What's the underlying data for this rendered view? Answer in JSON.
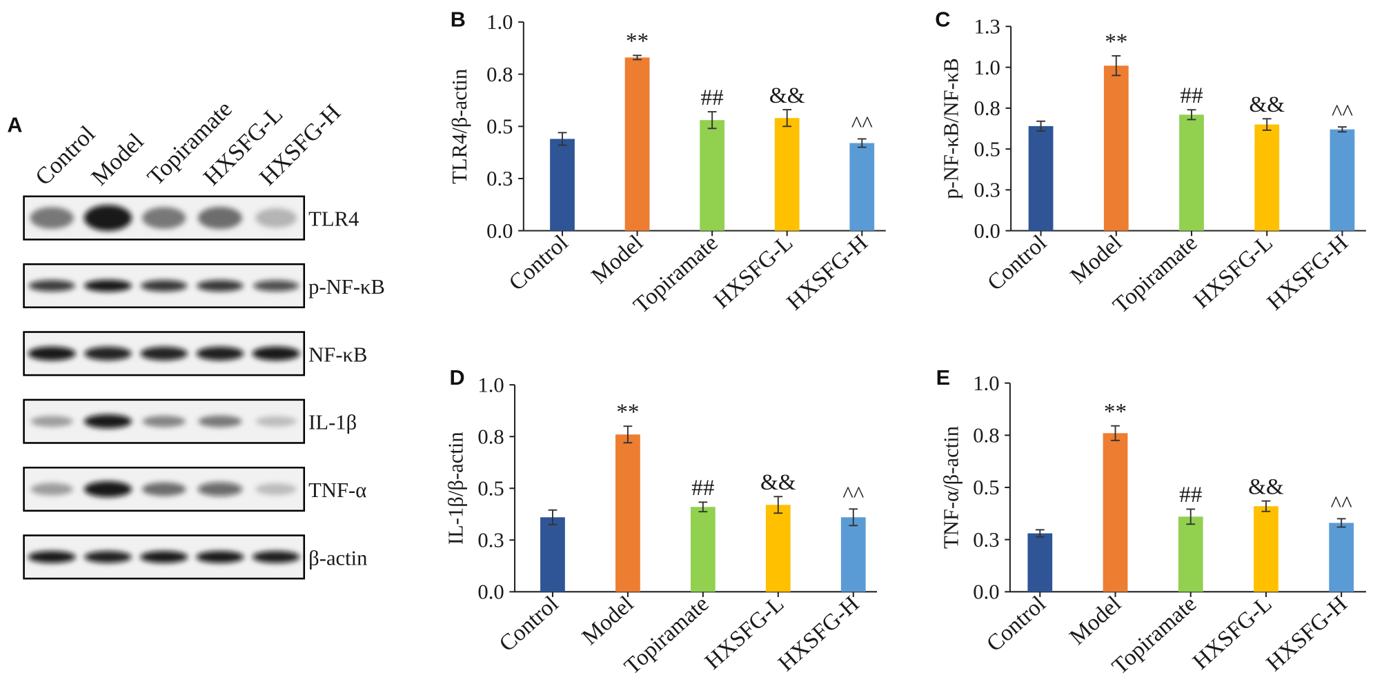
{
  "panel_a": {
    "label": "A",
    "lanes": [
      "Control",
      "Model",
      "Topiramate",
      "HXSFG-L",
      "HXSFG-H"
    ],
    "rows": [
      {
        "protein": "TLR4",
        "band_intensity": [
          0.5,
          0.95,
          0.5,
          0.55,
          0.25
        ]
      },
      {
        "protein": "p-NF-κB",
        "band_intensity": [
          0.8,
          0.95,
          0.82,
          0.82,
          0.72
        ]
      },
      {
        "protein": "NF-κB",
        "band_intensity": [
          0.95,
          0.9,
          0.9,
          0.92,
          0.95
        ]
      },
      {
        "protein": "IL-1β",
        "band_intensity": [
          0.35,
          0.95,
          0.45,
          0.5,
          0.22
        ]
      },
      {
        "protein": "TNF-α",
        "band_intensity": [
          0.35,
          0.95,
          0.55,
          0.6,
          0.22
        ]
      },
      {
        "protein": "β-actin",
        "band_intensity": [
          0.95,
          0.92,
          0.95,
          0.95,
          0.93
        ]
      }
    ]
  },
  "chart_data": [
    {
      "panel": "B",
      "type": "bar",
      "title": "",
      "xlabel": "",
      "ylabel": "TLR4/β-actin",
      "categories": [
        "Control",
        "Model",
        "Topiramate",
        "HXSFG-L",
        "HXSFG-H"
      ],
      "values": [
        0.44,
        0.83,
        0.53,
        0.54,
        0.42
      ],
      "errors": [
        0.03,
        0.01,
        0.04,
        0.04,
        0.02
      ],
      "annotations": [
        "",
        "**",
        "##",
        "&&",
        "^^"
      ],
      "colors": [
        "#2F5597",
        "#ED7D31",
        "#92D050",
        "#FFC000",
        "#5B9BD5"
      ],
      "ylim": [
        0,
        1.0
      ],
      "yticks": [
        0,
        0.25,
        0.5,
        0.75,
        1.0
      ],
      "ytick_labels": [
        "0.0",
        "0.3",
        "0.5",
        "0.8",
        "1.0"
      ],
      "grid": false
    },
    {
      "panel": "C",
      "type": "bar",
      "title": "",
      "xlabel": "",
      "ylabel": "p-NF-κB/NF-κB",
      "categories": [
        "Control",
        "Model",
        "Topiramate",
        "HXSFG-L",
        "HXSFG-H"
      ],
      "values": [
        0.64,
        1.01,
        0.71,
        0.65,
        0.62
      ],
      "errors": [
        0.03,
        0.06,
        0.03,
        0.035,
        0.015
      ],
      "annotations": [
        "",
        "**",
        "##",
        "&&",
        "^^"
      ],
      "colors": [
        "#2F5597",
        "#ED7D31",
        "#92D050",
        "#FFC000",
        "#5B9BD5"
      ],
      "ylim": [
        0,
        1.25
      ],
      "yticks": [
        0,
        0.25,
        0.5,
        0.75,
        1.0,
        1.25
      ],
      "ytick_labels": [
        "0.0",
        "0.3",
        "0.5",
        "0.8",
        "1.0",
        "1.3"
      ],
      "grid": false
    },
    {
      "panel": "D",
      "type": "bar",
      "title": "",
      "xlabel": "",
      "ylabel": "IL-1β/β-actin",
      "categories": [
        "Control",
        "Model",
        "Topiramate",
        "HXSFG-L",
        "HXSFG-H"
      ],
      "values": [
        0.36,
        0.76,
        0.41,
        0.42,
        0.36
      ],
      "errors": [
        0.035,
        0.04,
        0.023,
        0.04,
        0.04
      ],
      "annotations": [
        "",
        "**",
        "##",
        "&&",
        "^^"
      ],
      "colors": [
        "#2F5597",
        "#ED7D31",
        "#92D050",
        "#FFC000",
        "#5B9BD5"
      ],
      "ylim": [
        0,
        1.0
      ],
      "yticks": [
        0,
        0.25,
        0.5,
        0.75,
        1.0
      ],
      "ytick_labels": [
        "0.0",
        "0.3",
        "0.5",
        "0.8",
        "1.0"
      ],
      "grid": false
    },
    {
      "panel": "E",
      "type": "bar",
      "title": "",
      "xlabel": "",
      "ylabel": "TNF-α/β-actin",
      "categories": [
        "Control",
        "Model",
        "Topiramate",
        "HXSFG-L",
        "HXSFG-H"
      ],
      "values": [
        0.28,
        0.76,
        0.36,
        0.41,
        0.33
      ],
      "errors": [
        0.017,
        0.035,
        0.036,
        0.025,
        0.02
      ],
      "annotations": [
        "",
        "**",
        "##",
        "&&",
        "^^"
      ],
      "colors": [
        "#2F5597",
        "#ED7D31",
        "#92D050",
        "#FFC000",
        "#5B9BD5"
      ],
      "ylim": [
        0,
        1.0
      ],
      "yticks": [
        0,
        0.25,
        0.5,
        0.75,
        1.0
      ],
      "ytick_labels": [
        "0.0",
        "0.3",
        "0.5",
        "0.8",
        "1.0"
      ],
      "grid": false
    }
  ]
}
